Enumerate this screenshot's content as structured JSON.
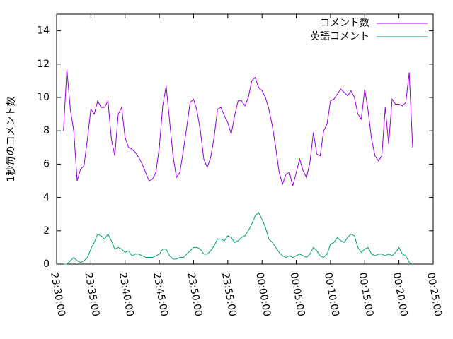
{
  "chart_data": {
    "type": "line",
    "ylabel": "1秒毎のコメント数",
    "xlim": [
      "23:30:00",
      "00:25:00"
    ],
    "xticks": [
      "23:30:00",
      "23:35:00",
      "23:40:00",
      "23:45:00",
      "23:50:00",
      "23:55:00",
      "00:00:00",
      "00:05:00",
      "00:10:00",
      "00:15:00",
      "00:20:00",
      "00:25:00"
    ],
    "ylim": [
      0,
      15
    ],
    "yticks": [
      0,
      2,
      4,
      6,
      8,
      10,
      12,
      14
    ],
    "grid": false,
    "legend": "top-right",
    "x": [
      "23:31:00",
      "23:31:30",
      "23:32:00",
      "23:32:30",
      "23:33:00",
      "23:33:30",
      "23:34:00",
      "23:34:30",
      "23:35:00",
      "23:35:30",
      "23:36:00",
      "23:36:30",
      "23:37:00",
      "23:37:30",
      "23:38:00",
      "23:38:30",
      "23:39:00",
      "23:39:30",
      "23:40:00",
      "23:40:30",
      "23:41:00",
      "23:41:30",
      "23:42:00",
      "23:42:30",
      "23:43:00",
      "23:43:30",
      "23:44:00",
      "23:44:30",
      "23:45:00",
      "23:45:30",
      "23:46:00",
      "23:46:30",
      "23:47:00",
      "23:47:30",
      "23:48:00",
      "23:48:30",
      "23:49:00",
      "23:49:30",
      "23:50:00",
      "23:50:30",
      "23:51:00",
      "23:51:30",
      "23:52:00",
      "23:52:30",
      "23:53:00",
      "23:53:30",
      "23:54:00",
      "23:54:30",
      "23:55:00",
      "23:55:30",
      "23:56:00",
      "23:56:30",
      "23:57:00",
      "23:57:30",
      "23:58:00",
      "23:58:30",
      "23:59:00",
      "23:59:30",
      "00:00:00",
      "00:00:30",
      "00:01:00",
      "00:01:30",
      "00:02:00",
      "00:02:30",
      "00:03:00",
      "00:03:30",
      "00:04:00",
      "00:04:30",
      "00:05:00",
      "00:05:30",
      "00:06:00",
      "00:06:30",
      "00:07:00",
      "00:07:30",
      "00:08:00",
      "00:08:30",
      "00:09:00",
      "00:09:30",
      "00:10:00",
      "00:10:30",
      "00:11:00",
      "00:11:30",
      "00:12:00",
      "00:12:30",
      "00:13:00",
      "00:13:30",
      "00:14:00",
      "00:14:30",
      "00:15:00",
      "00:15:30",
      "00:16:00",
      "00:16:30",
      "00:17:00",
      "00:17:30",
      "00:18:00",
      "00:18:30",
      "00:19:00",
      "00:19:30",
      "00:20:00",
      "00:20:30",
      "00:21:00",
      "00:21:30",
      "00:22:00"
    ],
    "series": [
      {
        "name": "コメント数",
        "color": "#9400d3",
        "values": [
          8.0,
          11.7,
          9.3,
          8.0,
          5.0,
          5.7,
          5.9,
          7.5,
          9.3,
          9.0,
          9.8,
          9.4,
          9.4,
          9.8,
          7.5,
          6.5,
          9.0,
          9.4,
          7.6,
          7.0,
          6.9,
          6.7,
          6.4,
          6.0,
          5.5,
          5.0,
          5.1,
          5.5,
          7.0,
          9.5,
          10.7,
          8.6,
          6.5,
          5.2,
          5.5,
          6.8,
          8.2,
          9.7,
          9.9,
          9.2,
          8.0,
          6.3,
          5.8,
          6.4,
          7.6,
          9.3,
          9.4,
          8.9,
          8.5,
          7.8,
          8.9,
          9.8,
          9.8,
          9.5,
          10.0,
          11.0,
          11.2,
          10.6,
          10.4,
          10.0,
          9.3,
          8.3,
          7.0,
          5.5,
          4.8,
          5.4,
          5.5,
          4.7,
          5.5,
          6.3,
          5.6,
          5.2,
          6.1,
          7.9,
          6.6,
          6.5,
          8.0,
          8.4,
          9.8,
          9.9,
          10.2,
          10.5,
          10.3,
          10.1,
          10.4,
          10.0,
          9.0,
          8.7,
          10.5,
          9.2,
          7.5,
          6.5,
          6.2,
          6.5,
          9.4,
          7.2,
          9.9,
          9.6,
          9.6,
          9.5,
          9.7,
          11.5,
          7.0
        ]
      },
      {
        "name": "英語コメント",
        "color": "#009e73",
        "values": [
          0.0,
          0.0,
          0.2,
          0.4,
          0.2,
          0.1,
          0.2,
          0.4,
          0.9,
          1.3,
          1.8,
          1.7,
          1.5,
          1.8,
          1.4,
          0.9,
          1.0,
          0.9,
          0.7,
          0.8,
          0.5,
          0.6,
          0.6,
          0.5,
          0.4,
          0.4,
          0.4,
          0.5,
          0.6,
          0.9,
          0.9,
          0.5,
          0.3,
          0.3,
          0.4,
          0.4,
          0.6,
          0.8,
          1.0,
          1.0,
          0.9,
          0.6,
          0.6,
          0.8,
          1.1,
          1.5,
          1.5,
          1.4,
          1.7,
          1.6,
          1.3,
          1.4,
          1.6,
          1.7,
          2.0,
          2.4,
          2.9,
          3.1,
          2.7,
          2.2,
          1.5,
          1.3,
          1.0,
          0.7,
          0.5,
          0.4,
          0.5,
          0.4,
          0.5,
          0.6,
          0.5,
          0.4,
          0.6,
          1.0,
          0.8,
          0.5,
          0.4,
          0.6,
          1.2,
          1.3,
          1.6,
          1.4,
          1.3,
          1.6,
          1.8,
          1.7,
          1.0,
          0.7,
          0.9,
          1.0,
          0.6,
          0.5,
          0.6,
          0.6,
          0.5,
          0.6,
          0.5,
          0.7,
          1.0,
          0.6,
          0.5,
          0.1,
          0.0
        ]
      }
    ]
  }
}
